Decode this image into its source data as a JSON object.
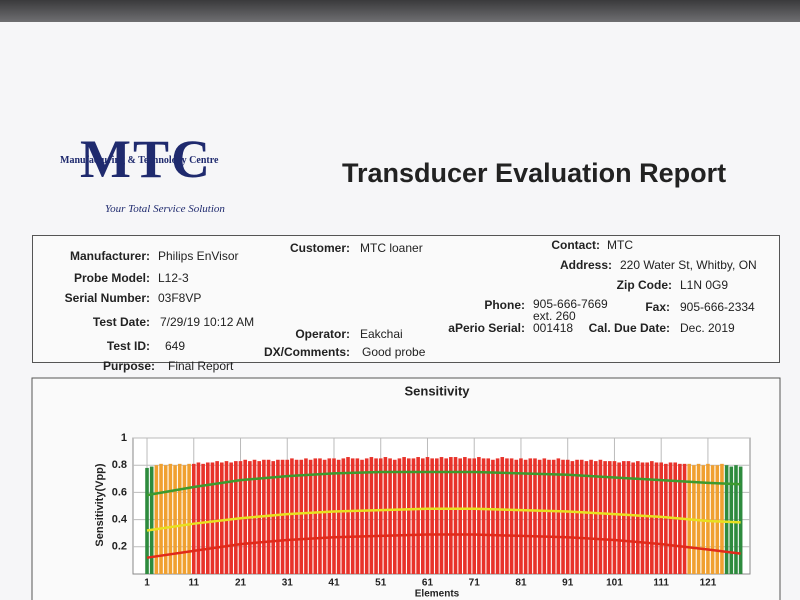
{
  "header": {
    "logo": "MTC",
    "company": "Manufacturing & Technology Centre",
    "slogan": "Your Total Service Solution",
    "title": "Transducer Evaluation Report"
  },
  "info": [
    {
      "label": "Manufacturer:",
      "value": "Philips EnVisor"
    },
    {
      "label": "Probe Model:",
      "value": "L12-3"
    },
    {
      "label": "Serial Number:",
      "value": "03F8VP"
    },
    {
      "label": "Test Date:",
      "value": "7/29/19 10:12 AM"
    },
    {
      "label": "Test ID:",
      "value": "649"
    },
    {
      "label": "Purpose:",
      "value": "Final Report"
    },
    {
      "label": "Customer:",
      "value": "MTC loaner"
    },
    {
      "label": "Operator:",
      "value": "Eakchai"
    },
    {
      "label": "DX/Comments:",
      "value": "Good probe"
    },
    {
      "label": "Contact:",
      "value": "MTC"
    },
    {
      "label": "Address:",
      "value": "220 Water St, Whitby, ON"
    },
    {
      "label": "Zip Code:",
      "value": "L1N 0G9"
    },
    {
      "label": "Phone:",
      "value": "905-666-7669 ext. 260"
    },
    {
      "label": "Fax:",
      "value": "905-666-2334"
    },
    {
      "label": "aPerio Serial:",
      "value": "001418"
    },
    {
      "label": "Cal. Due Date:",
      "value": "Dec. 2019"
    }
  ],
  "chart_data": {
    "type": "bar",
    "title": "Sensitivity",
    "y_label": "Sensitivity(Vpp)",
    "x_label": "Elements",
    "xlim": [
      -2,
      130
    ],
    "xticks": [
      1,
      11,
      21,
      31,
      41,
      51,
      61,
      71,
      81,
      91,
      101,
      111,
      121
    ],
    "ylim": [
      0,
      1
    ],
    "yticks": [
      0.2,
      0.4,
      0.6,
      0.8,
      1
    ],
    "grid": true,
    "series": [
      {
        "type": "bar",
        "color": "#2e8b3e",
        "x": [
          1,
          2,
          125,
          126,
          127,
          128
        ],
        "values": [
          0.78,
          0.79,
          0.8,
          0.79,
          0.8,
          0.79
        ]
      },
      {
        "type": "bar",
        "color": "#f0a030",
        "x": [
          3,
          4,
          5,
          6,
          7,
          8,
          9,
          10,
          117,
          118,
          119,
          120,
          121,
          122,
          123,
          124
        ],
        "values": [
          0.8,
          0.81,
          0.8,
          0.81,
          0.8,
          0.81,
          0.8,
          0.81,
          0.81,
          0.8,
          0.81,
          0.8,
          0.81,
          0.8,
          0.8,
          0.81
        ]
      },
      {
        "type": "bar",
        "color": "#e8322a",
        "x": [
          11,
          12,
          13,
          14,
          15,
          16,
          17,
          18,
          19,
          20,
          21,
          22,
          23,
          24,
          25,
          26,
          27,
          28,
          29,
          30,
          31,
          32,
          33,
          34,
          35,
          36,
          37,
          38,
          39,
          40,
          41,
          42,
          43,
          44,
          45,
          46,
          47,
          48,
          49,
          50,
          51,
          52,
          53,
          54,
          55,
          56,
          57,
          58,
          59,
          60,
          61,
          62,
          63,
          64,
          65,
          66,
          67,
          68,
          69,
          70,
          71,
          72,
          73,
          74,
          75,
          76,
          77,
          78,
          79,
          80,
          81,
          82,
          83,
          84,
          85,
          86,
          87,
          88,
          89,
          90,
          91,
          92,
          93,
          94,
          95,
          96,
          97,
          98,
          99,
          100,
          101,
          102,
          103,
          104,
          105,
          106,
          107,
          108,
          109,
          110,
          111,
          112,
          113,
          114,
          115,
          116
        ],
        "values": [
          0.81,
          0.82,
          0.81,
          0.82,
          0.82,
          0.83,
          0.82,
          0.83,
          0.82,
          0.83,
          0.83,
          0.84,
          0.83,
          0.84,
          0.83,
          0.84,
          0.84,
          0.83,
          0.84,
          0.84,
          0.84,
          0.85,
          0.84,
          0.84,
          0.85,
          0.84,
          0.85,
          0.85,
          0.84,
          0.85,
          0.85,
          0.84,
          0.85,
          0.86,
          0.85,
          0.85,
          0.84,
          0.85,
          0.86,
          0.85,
          0.85,
          0.86,
          0.85,
          0.84,
          0.85,
          0.86,
          0.85,
          0.85,
          0.86,
          0.85,
          0.86,
          0.85,
          0.85,
          0.86,
          0.85,
          0.86,
          0.86,
          0.85,
          0.86,
          0.85,
          0.85,
          0.86,
          0.85,
          0.85,
          0.84,
          0.85,
          0.86,
          0.85,
          0.85,
          0.84,
          0.85,
          0.84,
          0.85,
          0.85,
          0.84,
          0.85,
          0.84,
          0.84,
          0.85,
          0.84,
          0.84,
          0.83,
          0.84,
          0.84,
          0.83,
          0.84,
          0.83,
          0.84,
          0.83,
          0.83,
          0.83,
          0.82,
          0.83,
          0.83,
          0.82,
          0.83,
          0.82,
          0.82,
          0.83,
          0.82,
          0.82,
          0.81,
          0.82,
          0.82,
          0.81,
          0.81
        ]
      },
      {
        "type": "line",
        "color": "#3d9a2e",
        "x": [
          1,
          11,
          21,
          31,
          41,
          51,
          61,
          71,
          81,
          91,
          101,
          111,
          121,
          128
        ],
        "values": [
          0.58,
          0.64,
          0.69,
          0.72,
          0.74,
          0.75,
          0.75,
          0.75,
          0.74,
          0.73,
          0.71,
          0.69,
          0.67,
          0.66
        ]
      },
      {
        "type": "line",
        "color": "#e8e020",
        "x": [
          1,
          11,
          21,
          31,
          41,
          51,
          61,
          71,
          81,
          91,
          101,
          111,
          121,
          128
        ],
        "values": [
          0.32,
          0.37,
          0.41,
          0.44,
          0.46,
          0.47,
          0.48,
          0.48,
          0.47,
          0.46,
          0.44,
          0.42,
          0.39,
          0.38
        ]
      },
      {
        "type": "line",
        "color": "#e02a1a",
        "x": [
          1,
          11,
          21,
          31,
          41,
          51,
          61,
          71,
          81,
          91,
          101,
          111,
          121,
          128
        ],
        "values": [
          0.12,
          0.17,
          0.22,
          0.25,
          0.27,
          0.28,
          0.29,
          0.29,
          0.28,
          0.27,
          0.25,
          0.22,
          0.18,
          0.15
        ]
      }
    ]
  }
}
